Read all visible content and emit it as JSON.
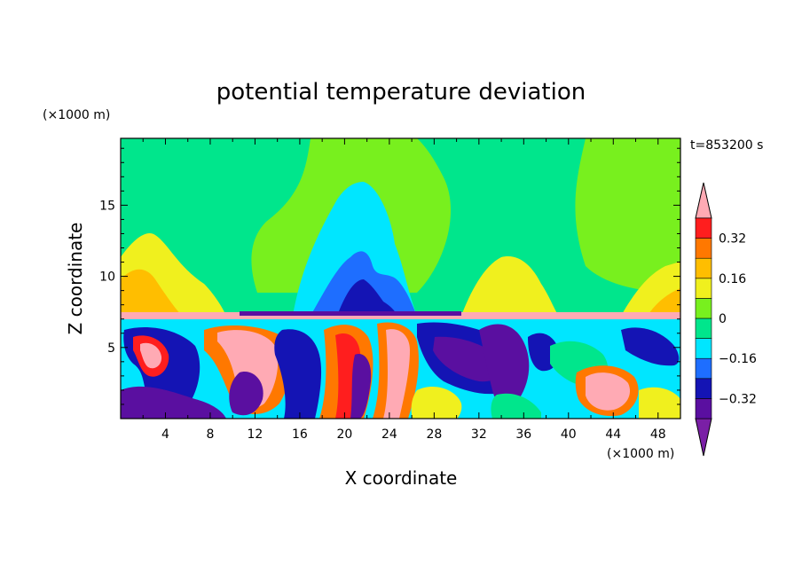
{
  "chart_data": {
    "type": "heatmap",
    "title": "potential temperature deviation",
    "time_label": "t=853200 s",
    "xlabel": "X coordinate",
    "ylabel": "Z coordinate",
    "x_unit": "(×1000 m)",
    "y_unit": "(×1000 m)",
    "xlim": [
      0,
      50
    ],
    "ylim": [
      0,
      19.7
    ],
    "x_ticks": [
      "4",
      "8",
      "12",
      "16",
      "20",
      "24",
      "28",
      "32",
      "36",
      "40",
      "44",
      "48"
    ],
    "y_ticks": [
      "5",
      "10",
      "15"
    ],
    "colorbar": {
      "levels": [
        -0.4,
        -0.32,
        -0.24,
        -0.16,
        -0.08,
        0,
        0.08,
        0.16,
        0.24,
        0.32,
        0.4
      ],
      "labels": [
        "0.32",
        "0.16",
        "0",
        "−0.16",
        "−0.32"
      ],
      "colors": [
        "#7a1fa6",
        "#5a0fa0",
        "#1414b4",
        "#1e6eff",
        "#00e6ff",
        "#00e68c",
        "#78f01e",
        "#f0f01e",
        "#ffbe00",
        "#ff7800",
        "#ff1e1e",
        "#ffaab4"
      ],
      "extend": "both"
    }
  }
}
